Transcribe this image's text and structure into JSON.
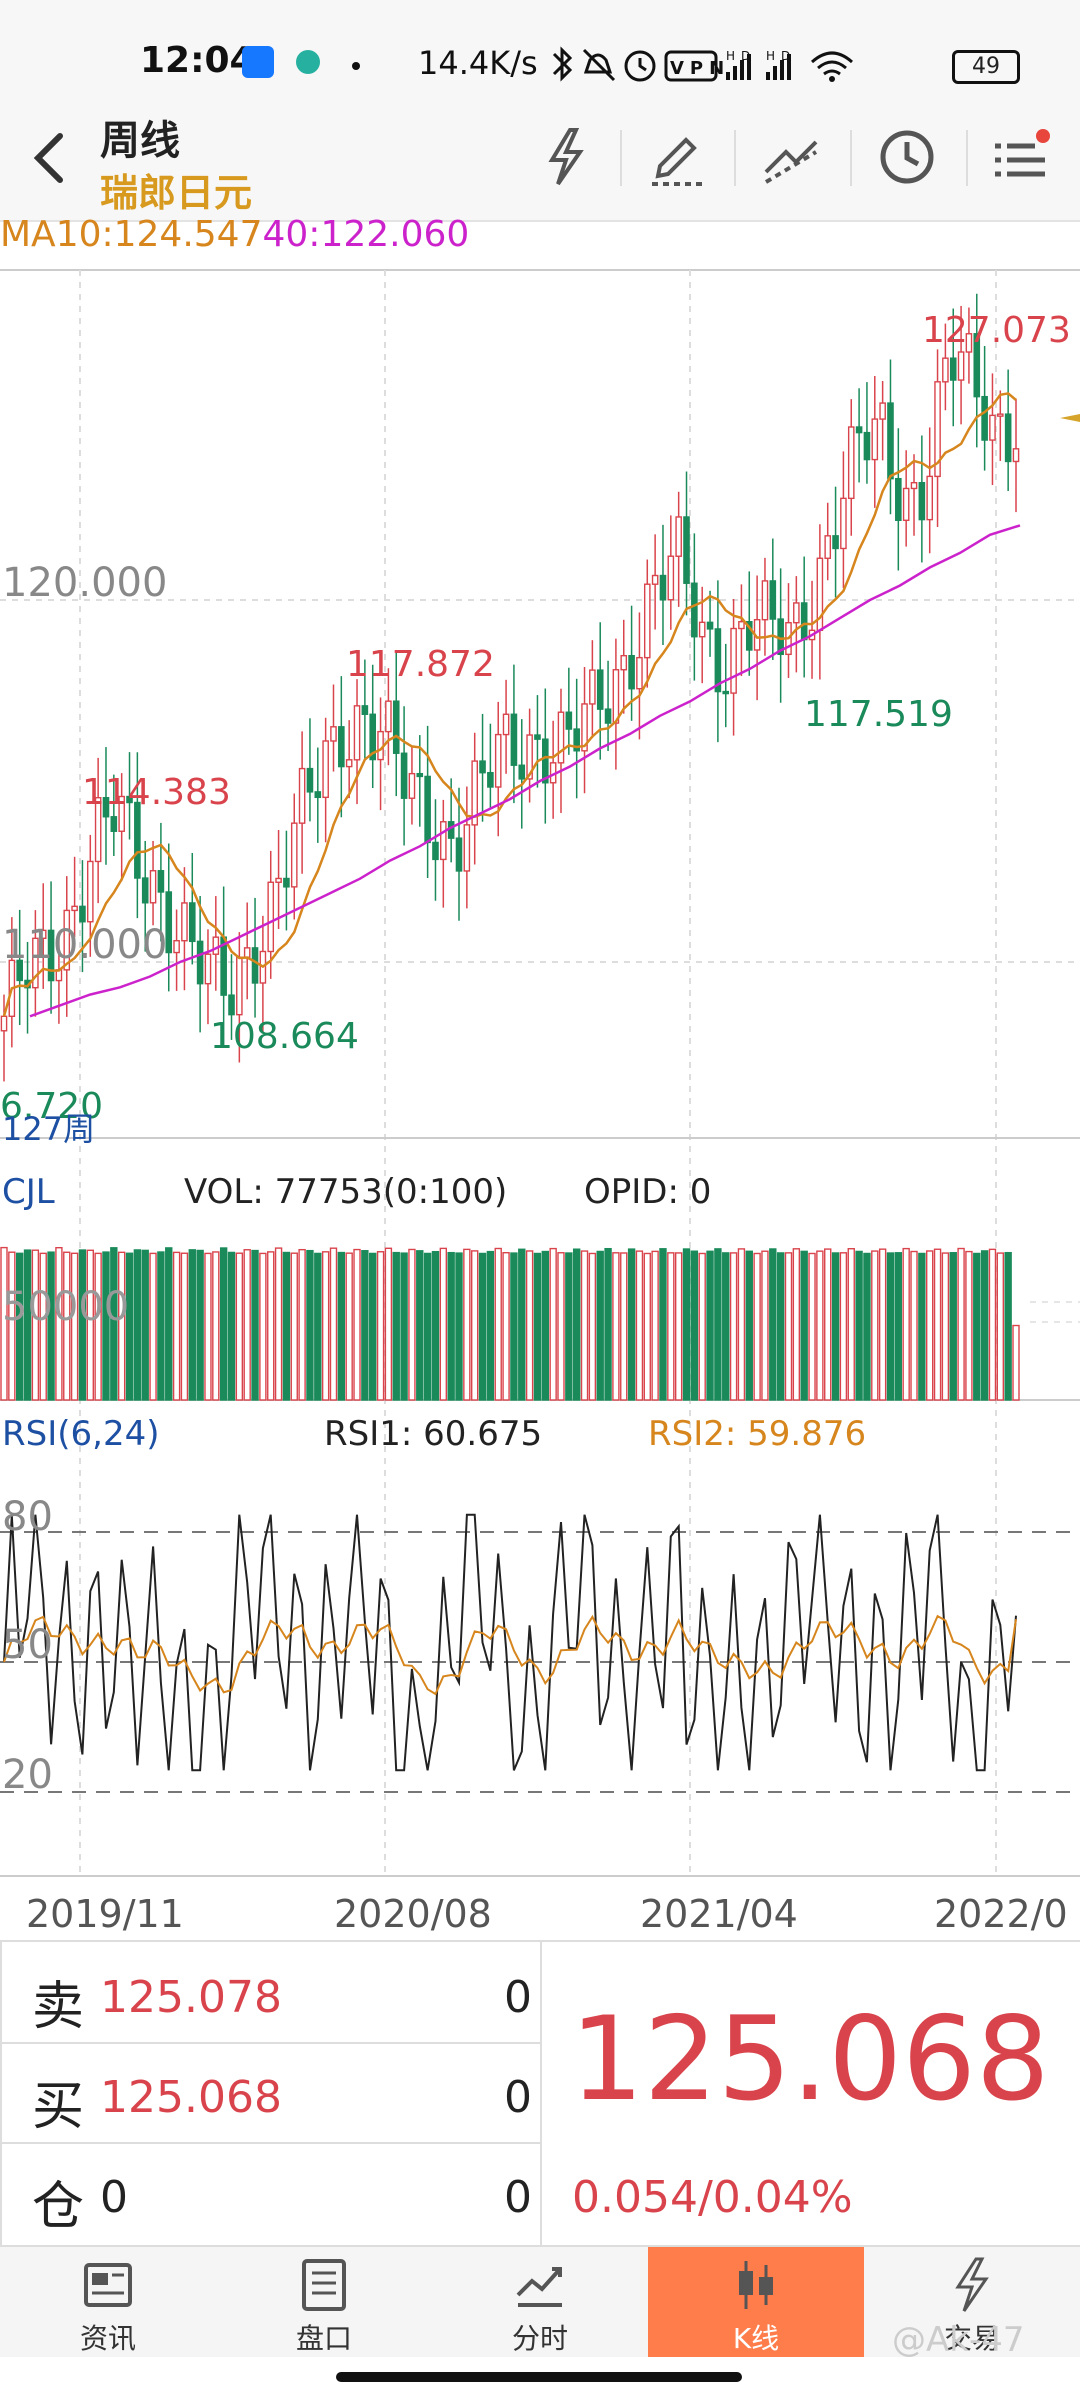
{
  "status_bar": {
    "time": "12:04",
    "speed": "14.4K/s",
    "battery": "49",
    "icons": [
      "bluetooth-icon",
      "mute-icon",
      "alarm-icon",
      "vpn-icon",
      "signal-hd-icon",
      "signal-hd-icon",
      "wifi-icon",
      "battery-icon"
    ],
    "vpn_label": "VPN"
  },
  "header": {
    "title": "周线",
    "subtitle": "瑞郎日元",
    "tools": [
      "flash-icon",
      "draw-pen-icon",
      "trendline-icon",
      "clock-icon",
      "menu-list-icon"
    ]
  },
  "indicators": {
    "ma10_label": "MA10:124.547",
    "ma40_label": "40:122.060"
  },
  "main_chart": {
    "price_labels": {
      "high_1": "114.383",
      "high_2": "117.872",
      "high_3": "127.073",
      "low_1": "108.664",
      "low_2": "117.519",
      "low_0": "6.720"
    },
    "y_ticks": [
      "120.000",
      "110.000"
    ],
    "period_label": "127周"
  },
  "volume": {
    "label": "CJL",
    "vol_label": "VOL: 77753(0:100)",
    "opid_label": "OPID: 0",
    "tick": "50000"
  },
  "rsi": {
    "label": "RSI(6,24)",
    "rsi1_label": "RSI1: 60.675",
    "rsi2_label": "RSI2: 59.876",
    "ticks": [
      "80",
      "50",
      "20"
    ]
  },
  "x_axis": [
    "2019/11",
    "2020/08",
    "2021/04",
    "2022/0"
  ],
  "trade": {
    "sell_key": "卖",
    "sell_price": "125.078",
    "sell_qty": "0",
    "buy_key": "买",
    "buy_price": "125.068",
    "buy_qty": "0",
    "pos_key": "仓",
    "pos_val": "0",
    "pos_qty": "0",
    "last_price": "125.068",
    "change": "0.054/0.04%"
  },
  "tabs": [
    {
      "label": "资讯",
      "icon": "news-icon"
    },
    {
      "label": "盘口",
      "icon": "orderbook-icon"
    },
    {
      "label": "分时",
      "icon": "timeshare-icon"
    },
    {
      "label": "K线",
      "icon": "candlestick-icon"
    },
    {
      "label": "交易",
      "icon": "trade-flash-icon"
    }
  ],
  "watermark": "@Ak-47",
  "colors": {
    "up": "#d9444c",
    "down": "#1a8a5a",
    "ma10": "#d6861d",
    "ma40": "#cc22cc",
    "accent": "#ff7c4b"
  },
  "chart_data": {
    "type": "candlestick",
    "x_ticks": [
      "2019/11",
      "2020/08",
      "2021/04",
      "2022/0"
    ],
    "y_ticks": [
      120,
      110
    ],
    "close_approx": [
      108.5,
      109.5,
      110.0,
      111.5,
      113.5,
      114.0,
      112.5,
      112.0,
      111.0,
      109.5,
      108.9,
      110.5,
      112.0,
      113.5,
      115.0,
      116.5,
      117.0,
      116.0,
      114.5,
      114.0,
      113.5,
      114.5,
      115.5,
      116.0,
      116.3,
      116.0,
      116.5,
      117.5,
      119.0,
      120.5,
      120.8,
      119.0,
      118.5,
      119.5,
      119.0,
      118.8,
      120.5,
      122.5,
      124.0,
      124.5,
      123.0,
      123.5,
      126.5,
      126.0,
      125.0,
      125.1
    ],
    "ma40_approx": [
      108.5,
      108.8,
      109.1,
      109.3,
      109.6,
      110.0,
      110.3,
      110.7,
      111.1,
      111.5,
      111.9,
      112.3,
      112.8,
      113.2,
      113.7,
      114.1,
      114.5,
      115.0,
      115.4,
      115.9,
      116.3,
      116.8,
      117.2,
      117.7,
      118.1,
      118.6,
      119.0,
      119.5,
      120.0,
      120.4,
      120.9,
      121.3,
      121.8,
      122.06
    ],
    "rsi_ticks": [
      80,
      50,
      20
    ],
    "rsi1_last": 60.675,
    "rsi2_last": 59.876,
    "volume_tick": 50000,
    "vol_last": 77753
  }
}
